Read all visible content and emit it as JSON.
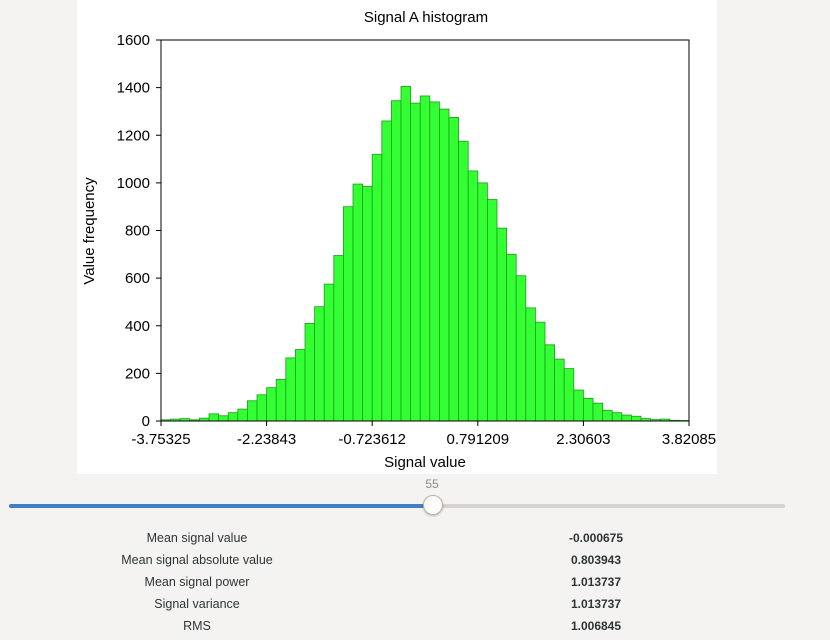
{
  "chart_data": {
    "type": "bar",
    "title": "Signal A histogram",
    "xlabel": "Signal value",
    "ylabel": "Value frequency",
    "x_ticks": [
      "-3.75325",
      "-2.23843",
      "-0.723612",
      "0.791209",
      "2.30603",
      "3.82085"
    ],
    "y_ticks": [
      "0",
      "200",
      "400",
      "600",
      "800",
      "1000",
      "1200",
      "1400",
      "1600"
    ],
    "xlim": [
      -3.75325,
      3.82085
    ],
    "ylim": [
      0,
      1600
    ],
    "bin_count": 55,
    "bar_color": "#33ff33",
    "bar_edge_color": "#1a9e1a",
    "values": [
      5,
      8,
      10,
      5,
      12,
      30,
      22,
      35,
      50,
      85,
      110,
      140,
      175,
      265,
      300,
      410,
      480,
      575,
      695,
      900,
      995,
      985,
      1120,
      1260,
      1345,
      1405,
      1335,
      1365,
      1340,
      1310,
      1275,
      1175,
      1050,
      1000,
      930,
      810,
      700,
      610,
      475,
      415,
      320,
      260,
      220,
      130,
      95,
      75,
      45,
      35,
      25,
      20,
      10,
      6,
      8,
      3,
      2
    ]
  },
  "slider": {
    "value": "55",
    "fraction": 0.545
  },
  "stats": [
    {
      "label": "Mean signal value",
      "value": "-0.000675"
    },
    {
      "label": "Mean signal absolute value",
      "value": "0.803943"
    },
    {
      "label": "Mean signal power",
      "value": "1.013737"
    },
    {
      "label": "Signal variance",
      "value": "1.013737"
    },
    {
      "label": "RMS",
      "value": "1.006845"
    }
  ]
}
